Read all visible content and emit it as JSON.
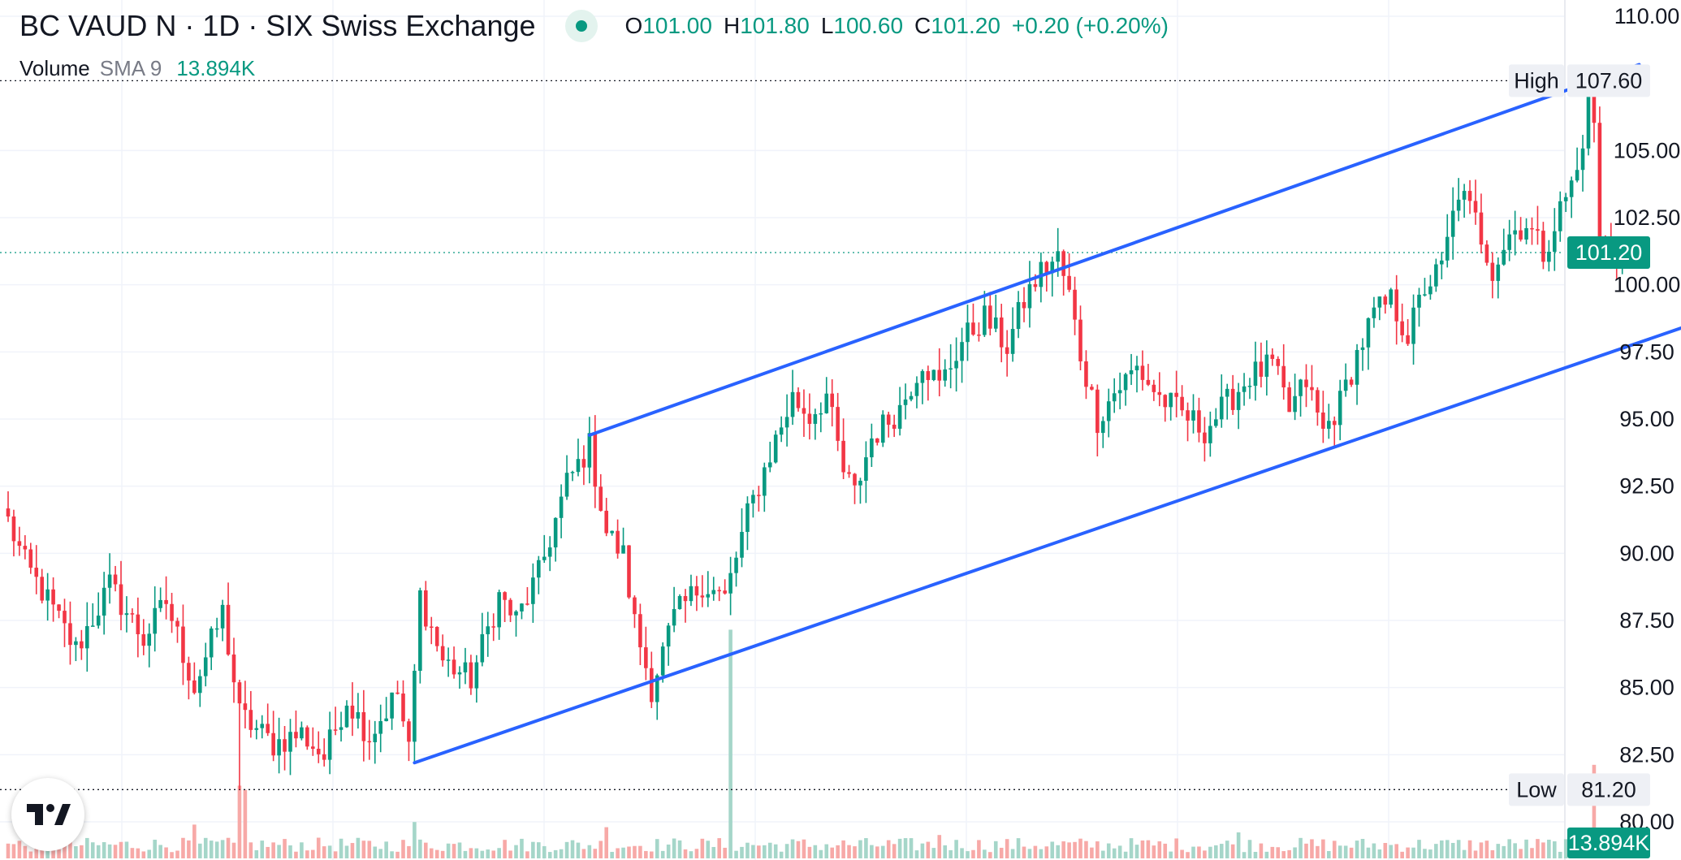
{
  "legend": {
    "title": "BC VAUD N · 1D · SIX Swiss Exchange",
    "o_key": "O",
    "o_val": "101.00",
    "h_key": "H",
    "h_val": "101.80",
    "l_key": "L",
    "l_val": "100.60",
    "c_key": "C",
    "c_val": "101.20",
    "change": "+0.20 (+0.20%)",
    "volume_label": "Volume",
    "volume_sma": "SMA 9",
    "volume_value": "13.894K"
  },
  "colors": {
    "up": "#089981",
    "down": "#f23645",
    "channel": "#2962ff",
    "volume_up": "#a5d6c9",
    "volume_down": "#f7a9a7",
    "grid": "#f0f3fa",
    "axis_text": "#131722",
    "price_marker": "#089981"
  },
  "chart_data": {
    "type": "candlestick",
    "symbol": "BC VAUD N",
    "interval": "1D",
    "exchange": "SIX Swiss Exchange",
    "y_axis": {
      "ticks": [
        "110.00",
        "105.00",
        "102.50",
        "100.00",
        "97.50",
        "95.00",
        "92.50",
        "90.00",
        "87.50",
        "85.00",
        "82.50",
        "80.00"
      ],
      "ylim": [
        79.6,
        110.6
      ],
      "position": "right"
    },
    "last_price": 101.2,
    "last_price_label": "101.20",
    "high": {
      "label": "High",
      "value": 107.6,
      "value_label": "107.60"
    },
    "low": {
      "label": "Low",
      "value": 81.2,
      "value_label": "81.20"
    },
    "volume_marker_label": "13.894K",
    "anchors": [
      {
        "i": 0,
        "p": 91.2
      },
      {
        "i": 3,
        "p": 89.6
      },
      {
        "i": 6,
        "p": 88.6
      },
      {
        "i": 12,
        "p": 86.4
      },
      {
        "i": 18,
        "p": 88.8
      },
      {
        "i": 24,
        "p": 86.8
      },
      {
        "i": 28,
        "p": 88.2
      },
      {
        "i": 33,
        "p": 85.0
      },
      {
        "i": 38,
        "p": 87.8
      },
      {
        "i": 41,
        "p": 84.0
      },
      {
        "i": 47,
        "p": 82.9
      },
      {
        "i": 52,
        "p": 83.3
      },
      {
        "i": 56,
        "p": 82.4
      },
      {
        "i": 60,
        "p": 84.6
      },
      {
        "i": 64,
        "p": 83.2
      },
      {
        "i": 69,
        "p": 84.8
      },
      {
        "i": 71,
        "p": 82.6
      },
      {
        "i": 73,
        "p": 88.4
      },
      {
        "i": 77,
        "p": 86.0
      },
      {
        "i": 82,
        "p": 85.3
      },
      {
        "i": 87,
        "p": 88.4
      },
      {
        "i": 90,
        "p": 87.5
      },
      {
        "i": 94,
        "p": 89.2
      },
      {
        "i": 99,
        "p": 92.6
      },
      {
        "i": 103,
        "p": 94.0
      },
      {
        "i": 106,
        "p": 90.8
      },
      {
        "i": 109,
        "p": 89.9
      },
      {
        "i": 111,
        "p": 87.4
      },
      {
        "i": 114,
        "p": 85.0
      },
      {
        "i": 118,
        "p": 87.6
      },
      {
        "i": 123,
        "p": 88.9
      },
      {
        "i": 127,
        "p": 88.3
      },
      {
        "i": 131,
        "p": 91.4
      },
      {
        "i": 135,
        "p": 93.7
      },
      {
        "i": 139,
        "p": 95.8
      },
      {
        "i": 142,
        "p": 95.1
      },
      {
        "i": 145,
        "p": 95.9
      },
      {
        "i": 148,
        "p": 93.0
      },
      {
        "i": 150,
        "p": 92.2
      },
      {
        "i": 153,
        "p": 94.3
      },
      {
        "i": 158,
        "p": 95.4
      },
      {
        "i": 162,
        "p": 97.2
      },
      {
        "i": 165,
        "p": 96.2
      },
      {
        "i": 169,
        "p": 97.9
      },
      {
        "i": 173,
        "p": 98.8
      },
      {
        "i": 177,
        "p": 97.7
      },
      {
        "i": 180,
        "p": 99.4
      },
      {
        "i": 183,
        "p": 100.5
      },
      {
        "i": 186,
        "p": 101.0
      },
      {
        "i": 188,
        "p": 99.6
      },
      {
        "i": 190,
        "p": 97.4
      },
      {
        "i": 193,
        "p": 95.0
      },
      {
        "i": 196,
        "p": 96.0
      },
      {
        "i": 200,
        "p": 96.9
      },
      {
        "i": 204,
        "p": 95.8
      },
      {
        "i": 208,
        "p": 95.2
      },
      {
        "i": 212,
        "p": 94.6
      },
      {
        "i": 216,
        "p": 95.6
      },
      {
        "i": 220,
        "p": 96.6
      },
      {
        "i": 224,
        "p": 97.0
      },
      {
        "i": 227,
        "p": 95.3
      },
      {
        "i": 230,
        "p": 96.4
      },
      {
        "i": 233,
        "p": 94.5
      },
      {
        "i": 236,
        "p": 95.6
      },
      {
        "i": 239,
        "p": 97.4
      },
      {
        "i": 242,
        "p": 98.9
      },
      {
        "i": 245,
        "p": 99.4
      },
      {
        "i": 248,
        "p": 98.1
      },
      {
        "i": 251,
        "p": 99.9
      },
      {
        "i": 254,
        "p": 100.6
      },
      {
        "i": 257,
        "p": 103.5
      },
      {
        "i": 260,
        "p": 102.4
      },
      {
        "i": 263,
        "p": 100.6
      },
      {
        "i": 266,
        "p": 101.9
      },
      {
        "i": 269,
        "p": 102.3
      },
      {
        "i": 272,
        "p": 101.2
      },
      {
        "i": 275,
        "p": 102.8
      },
      {
        "i": 278,
        "p": 104.2
      },
      {
        "i": 280,
        "p": 106.8
      },
      {
        "i": 281,
        "p": 106.1
      },
      {
        "i": 282,
        "p": 101.6
      },
      {
        "i": 284,
        "p": 101.0
      },
      {
        "i": 286,
        "p": 101.2
      }
    ],
    "channel_lines": [
      {
        "name": "upper",
        "points": [
          [
            103,
            94.4
          ],
          [
            289,
            108.2
          ]
        ]
      },
      {
        "name": "lower",
        "points": [
          [
            72,
            82.2
          ],
          [
            316,
            99.8
          ]
        ]
      }
    ],
    "volume": {
      "baseline": 2.0,
      "spikes": [
        {
          "i": 41,
          "v": 14.0
        },
        {
          "i": 42,
          "v": 13.2
        },
        {
          "i": 33,
          "v": 6.5
        },
        {
          "i": 72,
          "v": 7.0
        },
        {
          "i": 106,
          "v": 6.0
        },
        {
          "i": 128,
          "v": 44.0
        },
        {
          "i": 165,
          "v": 4.5
        },
        {
          "i": 218,
          "v": 5.0
        },
        {
          "i": 281,
          "v": 18.0
        }
      ]
    },
    "bars_count": 287
  }
}
